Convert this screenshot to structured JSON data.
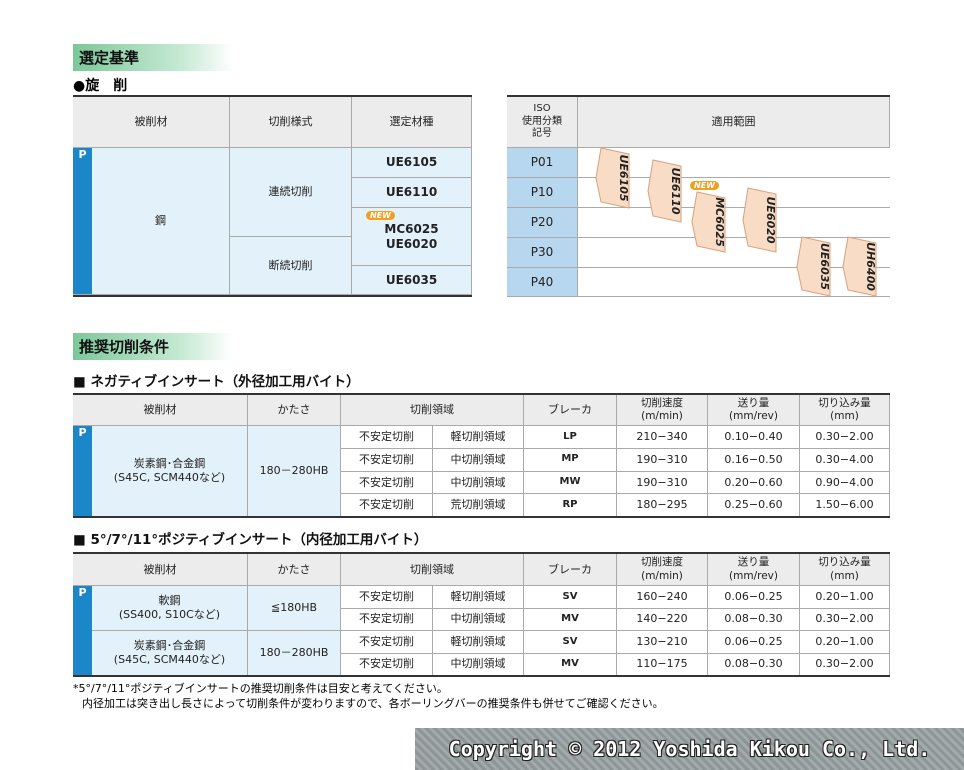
{
  "selection": {
    "title": "選定基準",
    "subtitle": "●旋　削",
    "left_table": {
      "headers": [
        "被削材",
        "切削様式",
        "選定材種"
      ],
      "code": "P",
      "material": "鋼",
      "styles": [
        "連続切削",
        "断続切削"
      ],
      "grades": [
        "UE6105",
        "UE6110",
        "MC6025",
        "UE6020",
        "UE6035"
      ],
      "badge": "NEW"
    },
    "right_table": {
      "headers": [
        [
          "ISO",
          "使用分類",
          "記号"
        ],
        "適用範囲"
      ],
      "iso": [
        "P01",
        "P10",
        "P20",
        "P30",
        "P40"
      ],
      "ranges": [
        "UE6105",
        "UE6110",
        "MC6025",
        "UE6020",
        "UE6035",
        "UH6400"
      ],
      "badge": "NEW"
    }
  },
  "conditions": {
    "title": "推奨切削条件",
    "negative": {
      "title": "■ ネガティブインサート（外径加工用バイト）",
      "headers": [
        "被削材",
        "かたさ",
        "切削領域",
        "ブレーカ",
        [
          "切削速度",
          "(m/min)"
        ],
        [
          "送り量",
          "(mm/rev)"
        ],
        [
          "切り込み量",
          "(mm)"
        ]
      ],
      "code": "P",
      "material": [
        "炭素鋼･合金鋼",
        "(S45C, SCM440など)"
      ],
      "hardness": "180－280HB",
      "rows": [
        [
          "不安定切削",
          "軽切削領域",
          "LP",
          "210−340",
          "0.10−0.40",
          "0.30−2.00"
        ],
        [
          "不安定切削",
          "中切削領域",
          "MP",
          "190−310",
          "0.16−0.50",
          "0.30−4.00"
        ],
        [
          "不安定切削",
          "中切削領域",
          "MW",
          "190−310",
          "0.20−0.60",
          "0.90−4.00"
        ],
        [
          "不安定切削",
          "荒切削領域",
          "RP",
          "180−295",
          "0.25−0.60",
          "1.50−6.00"
        ]
      ]
    },
    "positive": {
      "title": "■ 5°/7°/11°ポジティブインサート（内径加工用バイト）",
      "headers": [
        "被削材",
        "かたさ",
        "切削領域",
        "ブレーカ",
        [
          "切削速度",
          "(m/min)"
        ],
        [
          "送り量",
          "(mm/rev)"
        ],
        [
          "切り込み量",
          "(mm)"
        ]
      ],
      "code": "P",
      "groups": [
        {
          "material": [
            "軟鋼",
            "(SS400, S10Cなど)"
          ],
          "hardness": "≦180HB",
          "rows": [
            [
              "不安定切削",
              "軽切削領域",
              "SV",
              "160−240",
              "0.06−0.25",
              "0.20−1.00"
            ],
            [
              "不安定切削",
              "中切削領域",
              "MV",
              "140−220",
              "0.08−0.30",
              "0.30−2.00"
            ]
          ]
        },
        {
          "material": [
            "炭素鋼･合金鋼",
            "(S45C, SCM440など)"
          ],
          "hardness": "180－280HB",
          "rows": [
            [
              "不安定切削",
              "軽切削領域",
              "SV",
              "130−210",
              "0.06−0.25",
              "0.20−1.00"
            ],
            [
              "不安定切削",
              "中切削領域",
              "MV",
              "110−175",
              "0.08−0.30",
              "0.30−2.00"
            ]
          ]
        }
      ]
    }
  },
  "notes": [
    "*5°/7°/11°ポジティブインサートの推奨切削条件は目安と考えてください。",
    "内径加工は突き出し長さによって切削条件が変わりますので、各ボーリングバーの推奨条件も併せてご確認ください。"
  ],
  "copyright": "Copyright © 2012 Yoshida Kikou Co., Ltd."
}
